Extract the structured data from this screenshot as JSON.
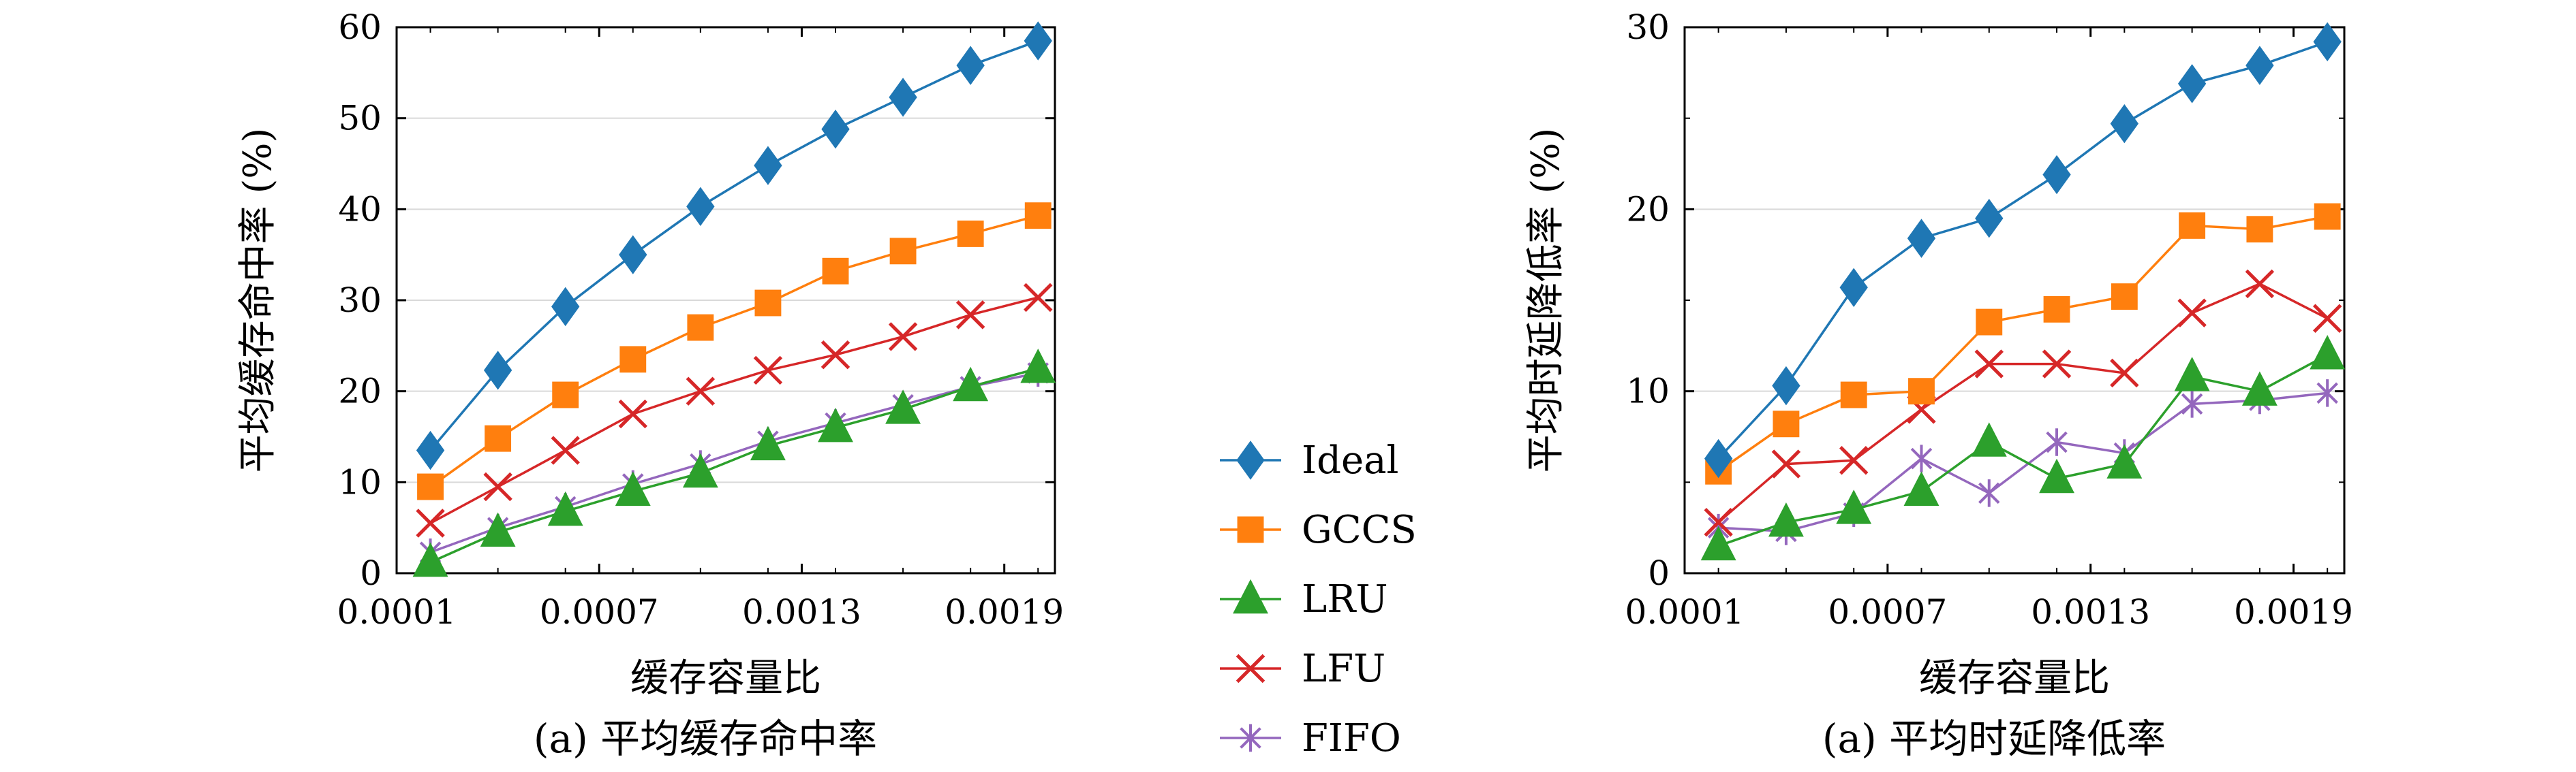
{
  "chart_data": [
    {
      "type": "line",
      "title": "",
      "caption": "(a) 平均缓存命中率",
      "xlabel": "缓存容量比",
      "ylabel": "平均缓存命中率 (%)",
      "xlim": [
        0.0001,
        0.00205
      ],
      "ylim": [
        0,
        60
      ],
      "xticks": [
        0.0001,
        0.0007,
        0.0013,
        0.0019
      ],
      "xtick_labels": [
        "0.0001",
        "0.0007",
        "0.0013",
        "0.0019"
      ],
      "yticks": [
        0,
        10,
        20,
        30,
        40,
        50,
        60
      ],
      "ytick_labels": [
        "0",
        "10",
        "20",
        "30",
        "40",
        "50",
        "60"
      ],
      "grid": "horizontal",
      "x": [
        0.0002,
        0.0004,
        0.0006,
        0.0008,
        0.001,
        0.0012,
        0.0014,
        0.0016,
        0.0018,
        0.002
      ],
      "series": [
        {
          "name": "Ideal",
          "values": [
            13.5,
            22.3,
            29.3,
            35.0,
            40.3,
            44.8,
            48.8,
            52.3,
            55.8,
            58.5
          ]
        },
        {
          "name": "GCCS",
          "values": [
            9.5,
            14.8,
            19.6,
            23.5,
            27.0,
            29.7,
            33.2,
            35.4,
            37.3,
            39.3
          ]
        },
        {
          "name": "LRU",
          "values": [
            1.2,
            4.5,
            6.8,
            9.0,
            11.0,
            14.0,
            16.0,
            18.0,
            20.5,
            22.5
          ]
        },
        {
          "name": "LFU",
          "values": [
            5.5,
            9.5,
            13.5,
            17.5,
            20.0,
            22.3,
            24.0,
            26.0,
            28.4,
            30.3
          ]
        },
        {
          "name": "FIFO",
          "values": [
            2.3,
            5.0,
            7.3,
            9.8,
            12.0,
            14.5,
            16.5,
            18.5,
            20.5,
            22.0
          ]
        }
      ]
    },
    {
      "type": "line",
      "title": "",
      "caption": "(a) 平均时延降低率",
      "xlabel": "缓存容量比",
      "ylabel": "平均时延降低率 (%)",
      "xlim": [
        0.0001,
        0.00205
      ],
      "ylim": [
        0,
        30
      ],
      "xticks": [
        0.0001,
        0.0007,
        0.0013,
        0.0019
      ],
      "xtick_labels": [
        "0.0001",
        "0.0007",
        "0.0013",
        "0.0019"
      ],
      "yticks": [
        0,
        10,
        20,
        30
      ],
      "ytick_labels": [
        "0",
        "10",
        "20",
        "30"
      ],
      "minor_yticks": [
        5,
        15,
        25
      ],
      "grid": "horizontal",
      "x": [
        0.0002,
        0.0004,
        0.0006,
        0.0008,
        0.001,
        0.0012,
        0.0014,
        0.0016,
        0.0018,
        0.002
      ],
      "series": [
        {
          "name": "Ideal",
          "values": [
            6.3,
            10.3,
            15.7,
            18.4,
            19.5,
            21.9,
            24.7,
            26.9,
            27.9,
            29.2
          ]
        },
        {
          "name": "GCCS",
          "values": [
            5.6,
            8.2,
            9.8,
            10.0,
            13.8,
            14.5,
            15.2,
            19.1,
            18.9,
            19.6
          ]
        },
        {
          "name": "LRU",
          "values": [
            1.5,
            2.8,
            3.5,
            4.5,
            7.2,
            5.2,
            6.0,
            10.8,
            10.0,
            12.0
          ]
        },
        {
          "name": "LFU",
          "values": [
            2.8,
            6.0,
            6.2,
            9.0,
            11.5,
            11.5,
            11.0,
            14.3,
            15.9,
            14.0
          ]
        },
        {
          "name": "FIFO",
          "values": [
            2.5,
            2.3,
            3.3,
            6.3,
            4.4,
            7.2,
            6.6,
            9.3,
            9.5,
            9.9
          ]
        }
      ]
    }
  ],
  "legend": {
    "entries": [
      "Ideal",
      "GCCS",
      "LRU",
      "LFU",
      "FIFO"
    ],
    "placement": "center, between panels"
  },
  "styles": {
    "Ideal": {
      "color": "#1f77b4",
      "marker": "diamond"
    },
    "GCCS": {
      "color": "#ff7f0e",
      "marker": "square"
    },
    "LRU": {
      "color": "#2ca02c",
      "marker": "triangle"
    },
    "LFU": {
      "color": "#d62728",
      "marker": "x"
    },
    "FIFO": {
      "color": "#9467bd",
      "marker": "asterisk"
    }
  }
}
